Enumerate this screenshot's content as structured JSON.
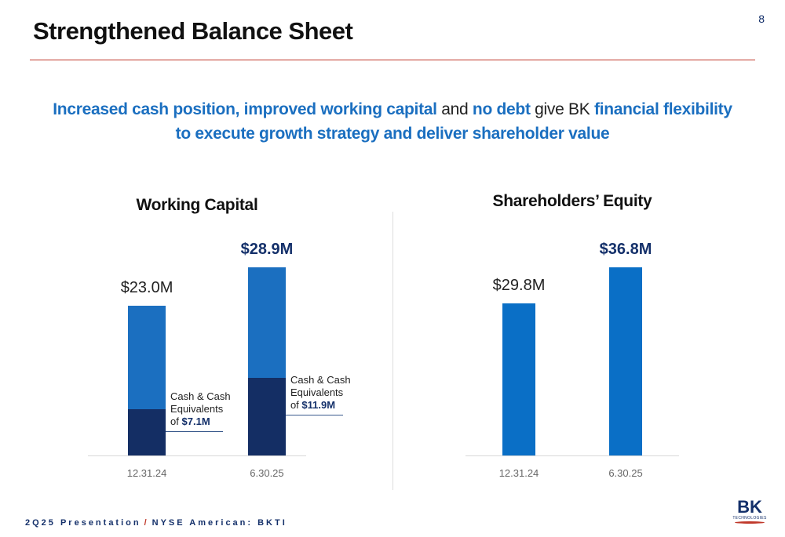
{
  "title": "Strengthened Balance Sheet",
  "page_number": "8",
  "headline": [
    "Increased cash position, improved working capital",
    " and ",
    "no debt",
    " give BK ",
    "financial flexibility",
    "to execute growth strategy and deliver shareholder value"
  ],
  "footer": [
    "2Q25 Presentation",
    "/",
    "NYSE American: BKTI"
  ],
  "logo": {
    "name": "BK",
    "sub": "TECHNOLOGIES"
  },
  "chart_data": [
    {
      "type": "bar",
      "title": "Working Capital",
      "categories": [
        "12.31.24",
        "6.30.25"
      ],
      "values": [
        23.0,
        28.9
      ],
      "value_labels": [
        "$23.0M",
        "$28.9M"
      ],
      "color": "#1b6fc0",
      "cash": {
        "label": "Cash & Cash Equivalents of",
        "values": [
          7.1,
          11.9
        ],
        "value_labels": [
          "$7.1M",
          "$11.9M"
        ],
        "color": "#142e64"
      }
    },
    {
      "type": "bar",
      "title": "Shareholders’ Equity",
      "categories": [
        "12.31.24",
        "6.30.25"
      ],
      "values": [
        29.8,
        36.8
      ],
      "value_labels": [
        "$29.8M",
        "$36.8M"
      ],
      "color": "#0a6fc6"
    }
  ]
}
